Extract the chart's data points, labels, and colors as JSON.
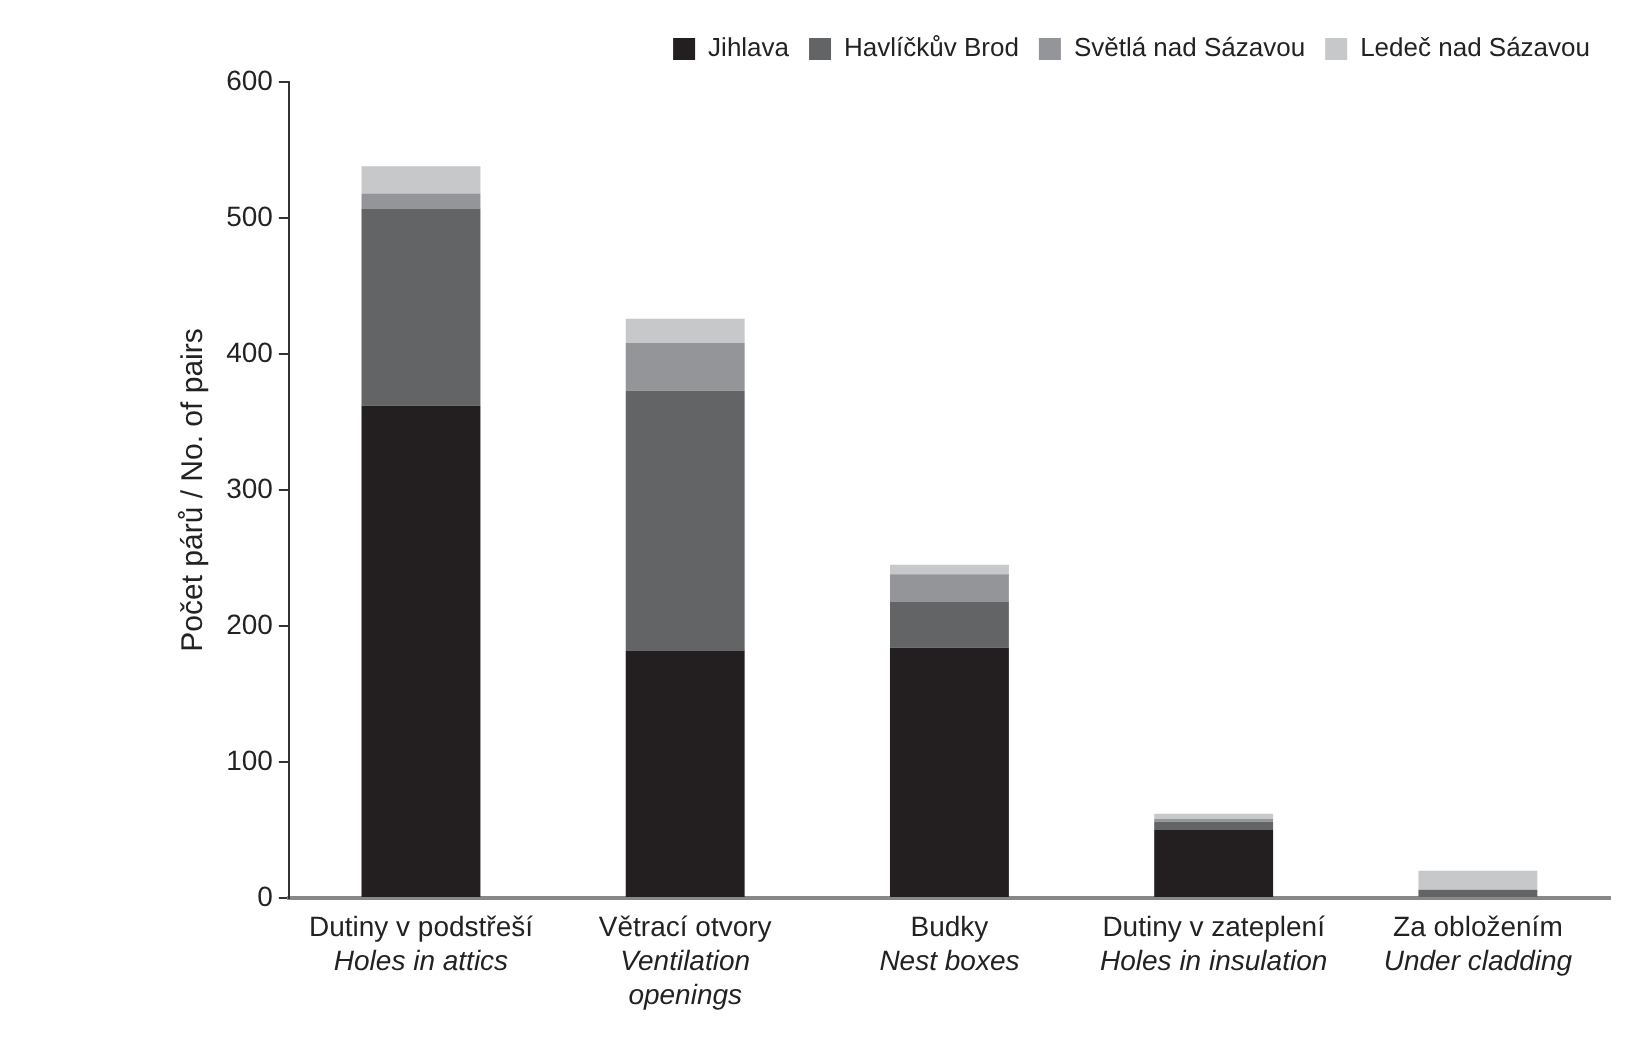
{
  "chart_data": {
    "type": "bar",
    "stacked": true,
    "ylabel": "Počet párů / No. of pairs",
    "categories": [
      "Dutiny v podstřeší\nHoles in attics",
      "Větrací otvory\nVentilation\nopenings",
      "Budky\nNest boxes",
      "Dutiny v zateplení\nHoles in insulation",
      "Za obložením\nUnder cladding"
    ],
    "series": [
      {
        "name": "Jihlava",
        "color": "#231f20",
        "values": [
          362,
          182,
          184,
          50,
          null
        ]
      },
      {
        "name": "Havlíčkův Brod",
        "color": "#636466",
        "values": [
          145,
          191,
          34,
          6,
          6
        ]
      },
      {
        "name": "Světlá nad Sázavou",
        "color": "#939598",
        "values": [
          11,
          35,
          20,
          2,
          0
        ]
      },
      {
        "name": "Ledeč nad Sázavou",
        "color": "#c7c8ca",
        "values": [
          20,
          18,
          7,
          4,
          14
        ]
      }
    ],
    "ylim": [
      0,
      600
    ],
    "yticks": [
      0,
      100,
      200,
      300,
      400,
      500,
      600
    ],
    "grid": false,
    "legend": "top right"
  }
}
